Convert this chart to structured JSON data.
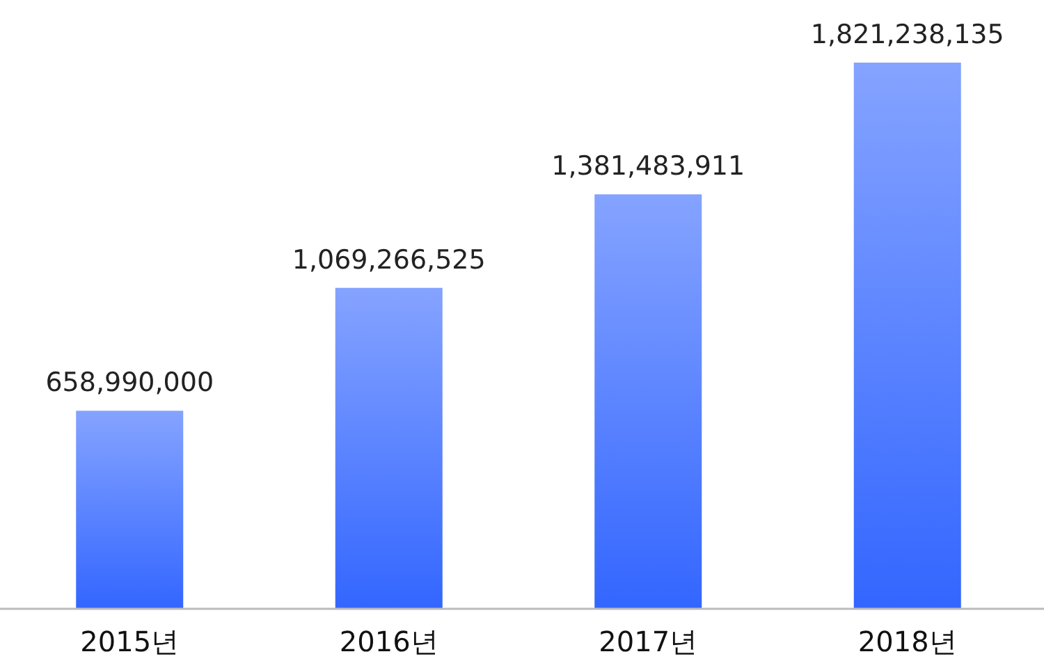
{
  "chart_data": {
    "type": "bar",
    "categories": [
      "2015년",
      "2016년",
      "2017년",
      "2018년"
    ],
    "values": [
      658990000,
      1069266525,
      1381483911,
      1821238135
    ],
    "value_labels": [
      "658,990,000",
      "1,069,266,525",
      "1,381,483,911",
      "1,821,238,135"
    ],
    "color": "#3366ff"
  }
}
